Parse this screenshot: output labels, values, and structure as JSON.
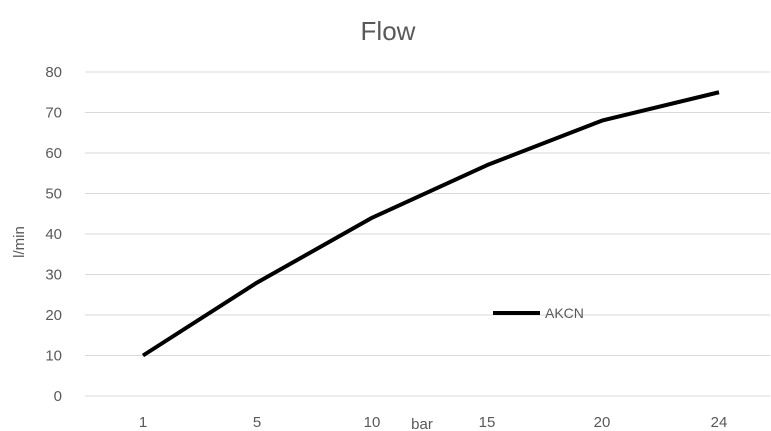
{
  "chart_data": {
    "type": "line",
    "title": "Flow",
    "xlabel": "bar",
    "ylabel": "l/min",
    "categories": [
      "1",
      "5",
      "10",
      "15",
      "20",
      "24"
    ],
    "series": [
      {
        "name": "AKCN",
        "values": [
          10,
          28,
          44,
          57,
          68,
          75
        ]
      }
    ],
    "ylim": [
      0,
      80
    ],
    "yticks": [
      0,
      10,
      20,
      30,
      40,
      50,
      60,
      70,
      80
    ],
    "grid": true,
    "legend_position": "inside-right",
    "colors": {
      "series": "#000000",
      "grid": "#d9d9d9",
      "text": "#595959"
    }
  }
}
